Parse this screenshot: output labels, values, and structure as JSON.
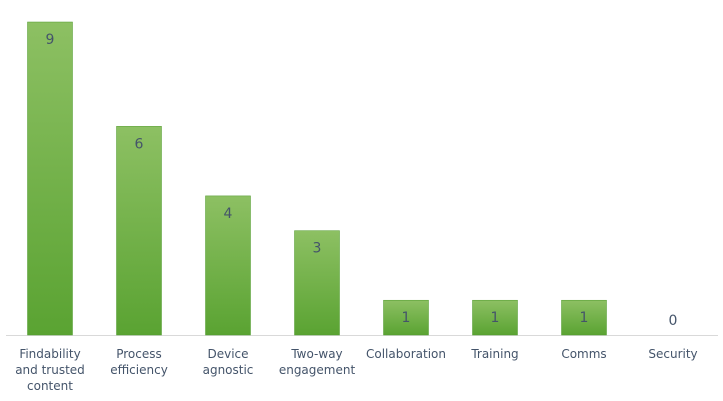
{
  "chart_data": {
    "type": "bar",
    "categories": [
      "Findability and trusted content",
      "Process efficiency",
      "Device agnostic",
      "Two-way engagement",
      "Collaboration",
      "Training",
      "Comms",
      "Security"
    ],
    "category_lines": [
      [
        "Findability",
        "and trusted",
        "content"
      ],
      [
        "Process",
        "efficiency"
      ],
      [
        "Device",
        "agnostic"
      ],
      [
        "Two-way",
        "engagement"
      ],
      [
        "Collaboration"
      ],
      [
        "Training"
      ],
      [
        "Comms"
      ],
      [
        "Security"
      ]
    ],
    "values": [
      9,
      6,
      4,
      3,
      1,
      1,
      1,
      0
    ],
    "data_labels": [
      "9",
      "6",
      "4",
      "3",
      "1",
      "1",
      "1",
      "0"
    ],
    "title": "",
    "xlabel": "",
    "ylabel": "",
    "ylim": [
      0,
      9
    ],
    "grid": false,
    "legend": "none",
    "colors": {
      "bar_top": "#8dc063",
      "bar_bottom": "#5aa332",
      "bar_stroke": "#4f9a2c",
      "label_text": "#44546a",
      "axis": "#d9d9d9"
    }
  }
}
